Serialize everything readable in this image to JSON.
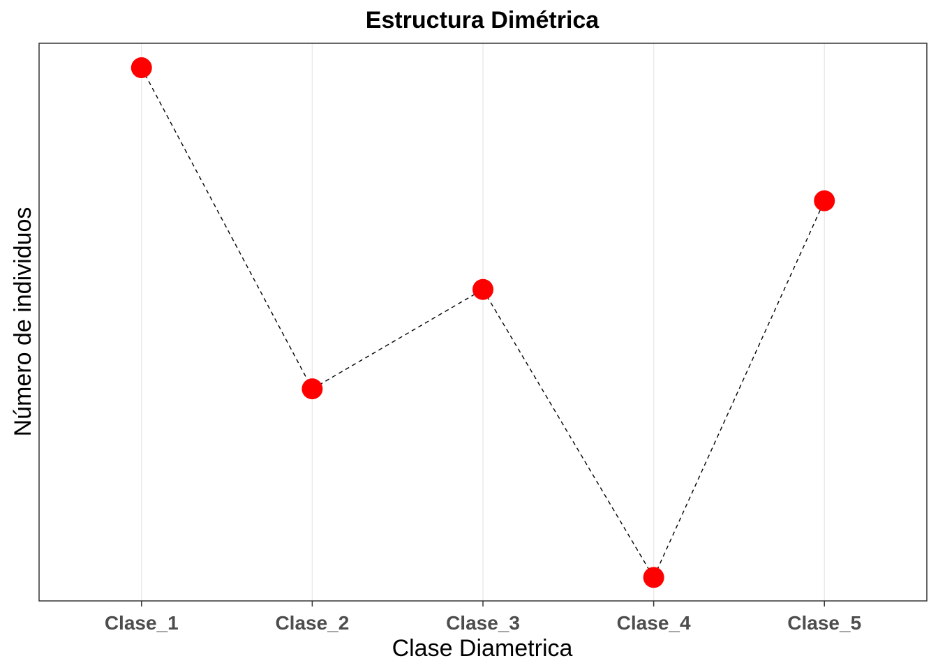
{
  "chart_data": {
    "type": "line",
    "title": "Estructura Dimétrica",
    "xlabel": "Clase Diametrica",
    "ylabel": "Número de individuos",
    "categories": [
      "Clase_1",
      "Clase_2",
      "Clase_3",
      "Clase_4",
      "Clase_5"
    ],
    "series": [
      {
        "values": [
          100,
          37,
          56.5,
          0,
          73.9
        ]
      }
    ],
    "ylim": [
      -4.6,
      104.8
    ],
    "y_ticks_shown": false,
    "grid": "vertical major lines only",
    "line_style": "dashed",
    "colors": {
      "point": "#ff0000",
      "line": "#000000",
      "grid": "#ebebeb",
      "panel_border": "#333333"
    }
  }
}
